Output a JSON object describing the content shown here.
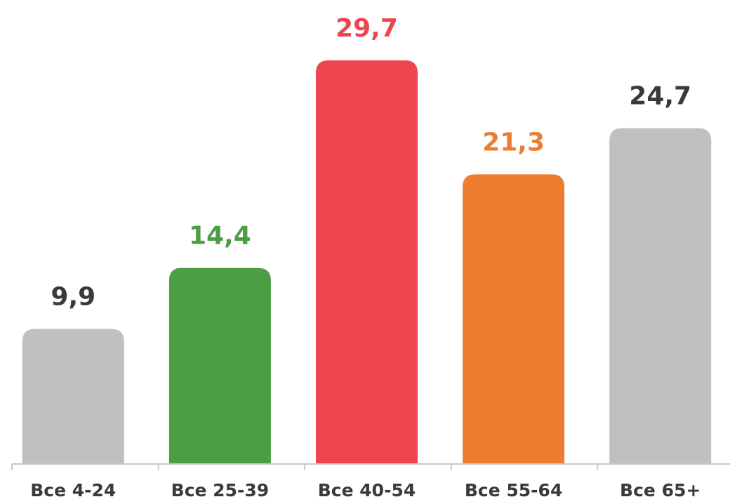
{
  "chart_data": {
    "type": "bar",
    "categories": [
      "Все 4-24",
      "Все 25-39",
      "Все 40-54",
      "Все 55-64",
      "Все 65+"
    ],
    "values": [
      9.9,
      14.4,
      29.7,
      21.3,
      24.7
    ],
    "value_labels": [
      "9,9",
      "14,4",
      "29,7",
      "21,3",
      "24,7"
    ],
    "colors": [
      "#c0c0c0",
      "#4c9e45",
      "#ee4650",
      "#ed7d31",
      "#c0c0c0"
    ],
    "label_colors": [
      "#3a3a3a",
      "#4c9e45",
      "#ee4650",
      "#ed7d31",
      "#3a3a3a"
    ]
  }
}
